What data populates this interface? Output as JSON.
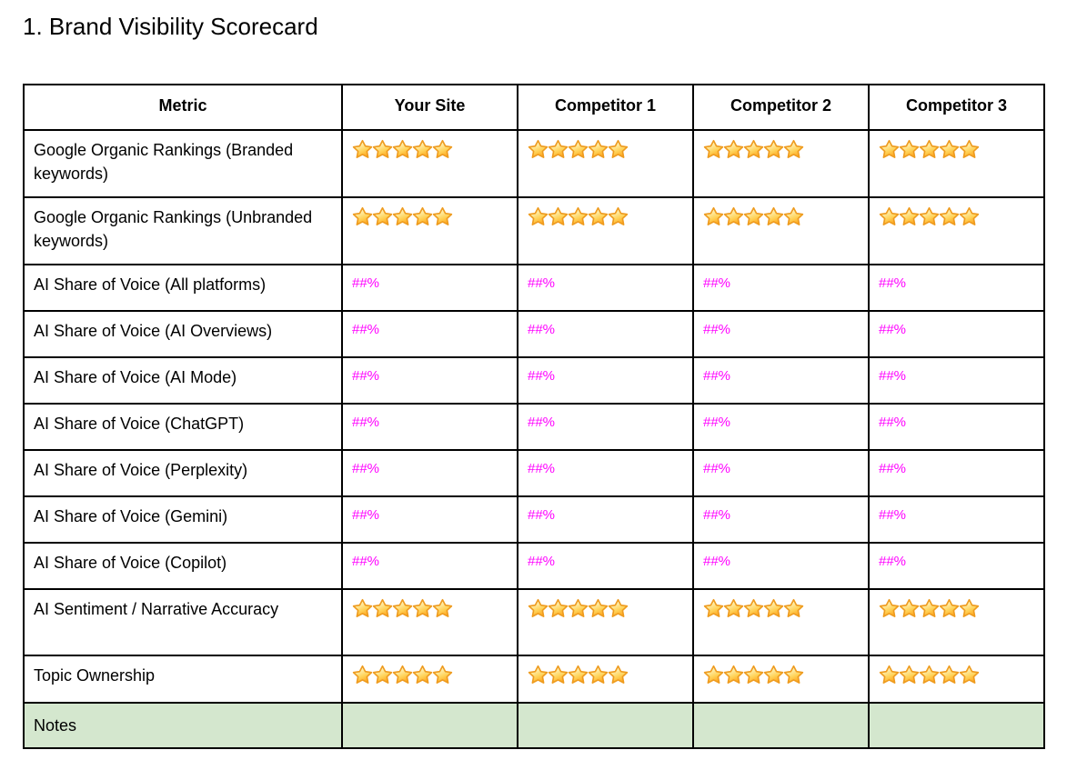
{
  "page": {
    "title": "1. Brand Visibility Scorecard"
  },
  "table": {
    "columns": [
      "Metric",
      "Your Site",
      "Competitor 1",
      "Competitor 2",
      "Competitor 3"
    ],
    "rows": [
      {
        "metric": "Google Organic Rankings (Branded keywords)",
        "type": "stars",
        "values": [
          5,
          5,
          5,
          5
        ]
      },
      {
        "metric": "Google Organic Rankings (Unbranded keywords)",
        "type": "stars",
        "values": [
          5,
          5,
          5,
          5
        ]
      },
      {
        "metric": "AI Share of Voice (All platforms)",
        "type": "percent",
        "values": [
          "##%",
          "##%",
          "##%",
          "##%"
        ]
      },
      {
        "metric": "AI Share of Voice (AI Overviews)",
        "type": "percent",
        "values": [
          "##%",
          "##%",
          "##%",
          "##%"
        ]
      },
      {
        "metric": "AI Share of Voice (AI Mode)",
        "type": "percent",
        "values": [
          "##%",
          "##%",
          "##%",
          "##%"
        ]
      },
      {
        "metric": "AI Share of Voice (ChatGPT)",
        "type": "percent",
        "values": [
          "##%",
          "##%",
          "##%",
          "##%"
        ]
      },
      {
        "metric": "AI Share of Voice (Perplexity)",
        "type": "percent",
        "values": [
          "##%",
          "##%",
          "##%",
          "##%"
        ]
      },
      {
        "metric": "AI Share of Voice (Gemini)",
        "type": "percent",
        "values": [
          "##%",
          "##%",
          "##%",
          "##%"
        ]
      },
      {
        "metric": "AI Share of Voice (Copilot)",
        "type": "percent",
        "values": [
          "##%",
          "##%",
          "##%",
          "##%"
        ]
      },
      {
        "metric": "AI Sentiment / Narrative Accuracy",
        "type": "stars",
        "values": [
          5,
          5,
          5,
          5
        ]
      },
      {
        "metric": "Topic Ownership",
        "type": "stars",
        "values": [
          5,
          5,
          5,
          5
        ]
      },
      {
        "metric": "Notes",
        "type": "notes",
        "values": [
          "",
          "",
          "",
          ""
        ]
      }
    ]
  },
  "colors": {
    "percent_magenta": "#ff00ff",
    "notes_row_green": "#d4e7ce",
    "star_gold": "#ffb32a",
    "table_border": "#000000"
  },
  "icons": {
    "star": "star-icon"
  }
}
